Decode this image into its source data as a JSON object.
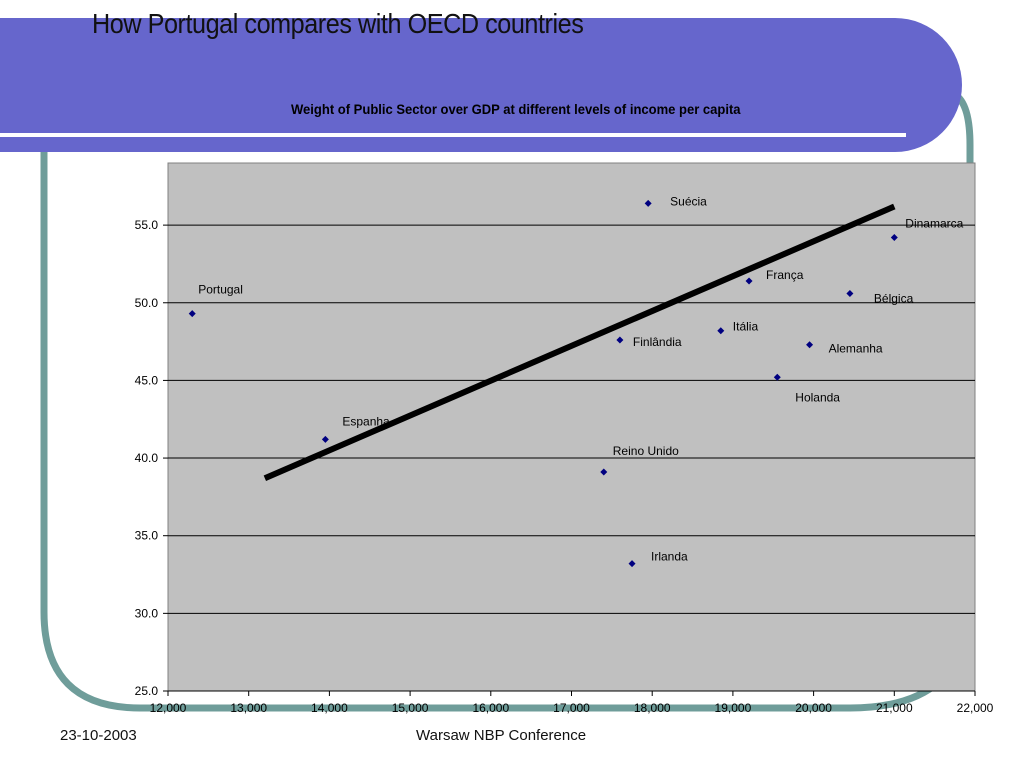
{
  "slide": {
    "title": "How Portugal compares with OECD countries"
  },
  "footer": {
    "date": "23-10-2003",
    "event": "Warsaw NBP Conference"
  },
  "colors": {
    "banner": "#6666cc",
    "frame": "#6f9d9a",
    "plot_background": "#c0c0c0",
    "marker": "#000080",
    "trendline": "#000000"
  },
  "chart_data": {
    "type": "scatter",
    "title": "Weight of Public Sector over GDP at different levels of income per capita",
    "xlabel": "",
    "ylabel": "",
    "xlim": [
      12000,
      22000
    ],
    "ylim": [
      25.0,
      59.0
    ],
    "x_ticks": [
      12000,
      13000,
      14000,
      15000,
      16000,
      17000,
      18000,
      19000,
      20000,
      21000,
      22000
    ],
    "x_tick_labels": [
      "12,000",
      "13,000",
      "14,000",
      "15,000",
      "16,000",
      "17,000",
      "18,000",
      "19,000",
      "20,000",
      "21,000",
      "22,000"
    ],
    "y_ticks": [
      25.0,
      30.0,
      35.0,
      40.0,
      45.0,
      50.0,
      55.0
    ],
    "y_tick_labels": [
      "25.0",
      "30.0",
      "35.0",
      "40.0",
      "45.0",
      "50.0",
      "55.0"
    ],
    "grid": "horizontal",
    "legend": "none",
    "points": [
      {
        "label": "Portugal",
        "x": 12300,
        "y": 49.3
      },
      {
        "label": "Espanha",
        "x": 13950,
        "y": 41.2
      },
      {
        "label": "Reino Unido",
        "x": 17400,
        "y": 39.1
      },
      {
        "label": "Irlanda",
        "x": 17750,
        "y": 33.2
      },
      {
        "label": "Finlândia",
        "x": 17600,
        "y": 47.6
      },
      {
        "label": "Suécia",
        "x": 17950,
        "y": 56.4
      },
      {
        "label": "Itália",
        "x": 18850,
        "y": 48.2
      },
      {
        "label": "França",
        "x": 19200,
        "y": 51.4
      },
      {
        "label": "Holanda",
        "x": 19550,
        "y": 45.2
      },
      {
        "label": "Alemanha",
        "x": 19950,
        "y": 47.3
      },
      {
        "label": "Bélgica",
        "x": 20450,
        "y": 50.6
      },
      {
        "label": "Dinamarca",
        "x": 21000,
        "y": 54.2
      }
    ],
    "trendline": {
      "x": [
        13200,
        21000
      ],
      "y": [
        38.7,
        56.2
      ]
    }
  }
}
